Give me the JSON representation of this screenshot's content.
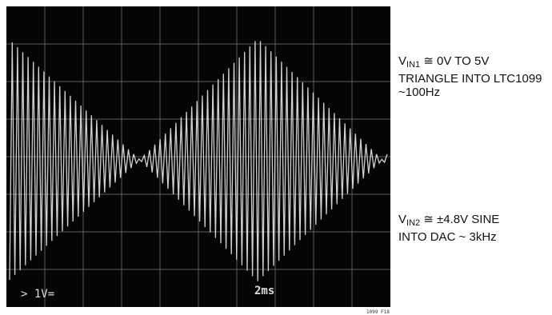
{
  "scope": {
    "volts_label": "> 1V=",
    "time_label": "2ms",
    "figure_id": "1099 F18"
  },
  "notes": [
    {
      "v": "V",
      "sub": "IN1",
      "lines": [
        "≅ 0V TO 5V",
        "TRIANGLE INTO LTC1099",
        "~100Hz"
      ]
    },
    {
      "v": "V",
      "sub": "IN2",
      "lines": [
        "≅ ±4.8V SINE",
        "INTO DAC ~ 3kHz"
      ]
    }
  ]
}
